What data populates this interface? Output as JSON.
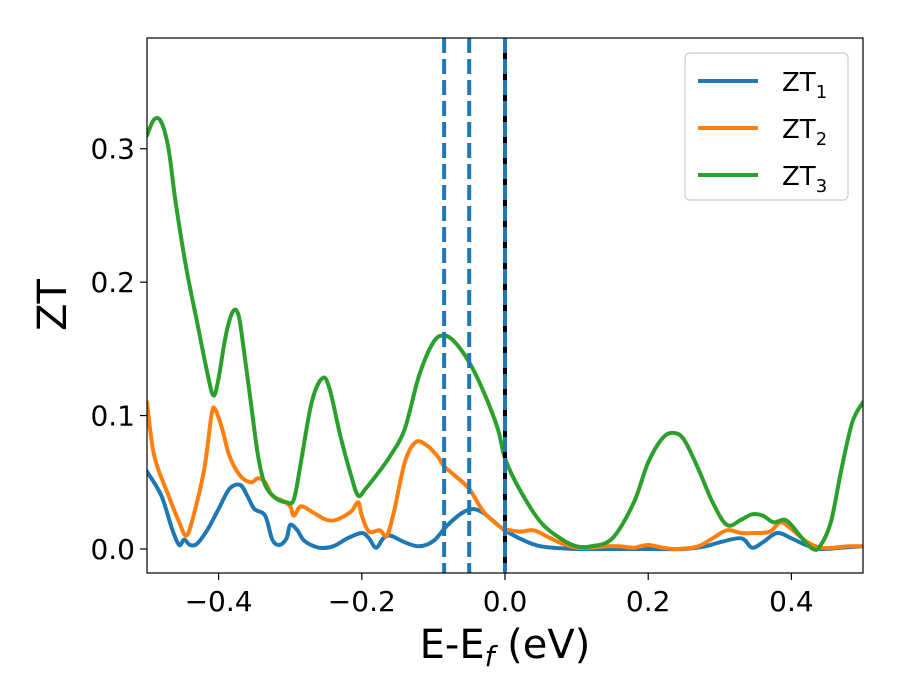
{
  "chart_data": {
    "type": "line",
    "xlabel": "E-E",
    "xlabel_sub": "f",
    "xlabel_unit": " (eV)",
    "ylabel": "ZT",
    "xlim": [
      -0.5,
      0.5
    ],
    "ylim": [
      -0.018,
      0.383
    ],
    "xticks": [
      -0.4,
      -0.2,
      0.0,
      0.2,
      0.4
    ],
    "xtick_labels": [
      "−0.4",
      "−0.2",
      "0.0",
      "0.2",
      "0.4"
    ],
    "yticks": [
      0.0,
      0.1,
      0.2,
      0.3
    ],
    "ytick_labels": [
      "0.0",
      "0.1",
      "0.2",
      "0.3"
    ],
    "grid": false,
    "legend_position": "top-right",
    "series": [
      {
        "name": "ZT",
        "sub": "1",
        "color": "#1f77b4",
        "points": [
          [
            -0.5,
            0.058
          ],
          [
            -0.48,
            0.04
          ],
          [
            -0.465,
            0.015
          ],
          [
            -0.455,
            0.003
          ],
          [
            -0.448,
            0.007
          ],
          [
            -0.44,
            0.003
          ],
          [
            -0.43,
            0.004
          ],
          [
            -0.415,
            0.015
          ],
          [
            -0.4,
            0.03
          ],
          [
            -0.385,
            0.045
          ],
          [
            -0.37,
            0.048
          ],
          [
            -0.36,
            0.04
          ],
          [
            -0.35,
            0.03
          ],
          [
            -0.335,
            0.025
          ],
          [
            -0.325,
            0.007
          ],
          [
            -0.315,
            0.003
          ],
          [
            -0.305,
            0.008
          ],
          [
            -0.3,
            0.018
          ],
          [
            -0.29,
            0.014
          ],
          [
            -0.28,
            0.006
          ],
          [
            -0.26,
            0.001
          ],
          [
            -0.24,
            0.002
          ],
          [
            -0.22,
            0.008
          ],
          [
            -0.2,
            0.012
          ],
          [
            -0.19,
            0.008
          ],
          [
            -0.18,
            0.001
          ],
          [
            -0.17,
            0.008
          ],
          [
            -0.16,
            0.01
          ],
          [
            -0.14,
            0.005
          ],
          [
            -0.12,
            0.002
          ],
          [
            -0.1,
            0.006
          ],
          [
            -0.08,
            0.018
          ],
          [
            -0.06,
            0.027
          ],
          [
            -0.045,
            0.03
          ],
          [
            -0.03,
            0.027
          ],
          [
            -0.01,
            0.018
          ],
          [
            0.0,
            0.014
          ],
          [
            0.02,
            0.008
          ],
          [
            0.05,
            0.002
          ],
          [
            0.1,
            0.0
          ],
          [
            0.15,
            0.0
          ],
          [
            0.2,
            0.0
          ],
          [
            0.25,
            0.0
          ],
          [
            0.28,
            0.002
          ],
          [
            0.3,
            0.005
          ],
          [
            0.33,
            0.008
          ],
          [
            0.345,
            0.001
          ],
          [
            0.36,
            0.005
          ],
          [
            0.38,
            0.012
          ],
          [
            0.4,
            0.008
          ],
          [
            0.42,
            0.003
          ],
          [
            0.44,
            0.0
          ],
          [
            0.47,
            0.001
          ],
          [
            0.5,
            0.002
          ]
        ]
      },
      {
        "name": "ZT",
        "sub": "2",
        "color": "#ff7f0e",
        "points": [
          [
            -0.5,
            0.11
          ],
          [
            -0.49,
            0.07
          ],
          [
            -0.47,
            0.04
          ],
          [
            -0.455,
            0.02
          ],
          [
            -0.445,
            0.01
          ],
          [
            -0.435,
            0.025
          ],
          [
            -0.42,
            0.06
          ],
          [
            -0.41,
            0.1
          ],
          [
            -0.405,
            0.105
          ],
          [
            -0.395,
            0.09
          ],
          [
            -0.385,
            0.07
          ],
          [
            -0.37,
            0.055
          ],
          [
            -0.355,
            0.05
          ],
          [
            -0.345,
            0.053
          ],
          [
            -0.335,
            0.05
          ],
          [
            -0.325,
            0.04
          ],
          [
            -0.31,
            0.036
          ],
          [
            -0.3,
            0.032
          ],
          [
            -0.295,
            0.025
          ],
          [
            -0.285,
            0.032
          ],
          [
            -0.27,
            0.028
          ],
          [
            -0.25,
            0.022
          ],
          [
            -0.235,
            0.022
          ],
          [
            -0.215,
            0.028
          ],
          [
            -0.205,
            0.035
          ],
          [
            -0.2,
            0.025
          ],
          [
            -0.19,
            0.013
          ],
          [
            -0.175,
            0.014
          ],
          [
            -0.165,
            0.01
          ],
          [
            -0.155,
            0.028
          ],
          [
            -0.14,
            0.065
          ],
          [
            -0.125,
            0.08
          ],
          [
            -0.11,
            0.078
          ],
          [
            -0.095,
            0.07
          ],
          [
            -0.085,
            0.062
          ],
          [
            -0.07,
            0.055
          ],
          [
            -0.05,
            0.045
          ],
          [
            -0.03,
            0.028
          ],
          [
            -0.01,
            0.018
          ],
          [
            0.0,
            0.015
          ],
          [
            0.02,
            0.013
          ],
          [
            0.04,
            0.014
          ],
          [
            0.06,
            0.009
          ],
          [
            0.08,
            0.004
          ],
          [
            0.1,
            0.001
          ],
          [
            0.12,
            0.001
          ],
          [
            0.14,
            0.002
          ],
          [
            0.16,
            0.002
          ],
          [
            0.18,
            0.001
          ],
          [
            0.2,
            0.003
          ],
          [
            0.22,
            0.001
          ],
          [
            0.24,
            0.0
          ],
          [
            0.27,
            0.002
          ],
          [
            0.29,
            0.008
          ],
          [
            0.31,
            0.014
          ],
          [
            0.33,
            0.012
          ],
          [
            0.35,
            0.012
          ],
          [
            0.37,
            0.013
          ],
          [
            0.385,
            0.02
          ],
          [
            0.4,
            0.015
          ],
          [
            0.42,
            0.006
          ],
          [
            0.44,
            0.001
          ],
          [
            0.46,
            0.001
          ],
          [
            0.48,
            0.002
          ],
          [
            0.5,
            0.002
          ]
        ]
      },
      {
        "name": "ZT",
        "sub": "3",
        "color": "#2ca02c",
        "points": [
          [
            -0.5,
            0.31
          ],
          [
            -0.49,
            0.322
          ],
          [
            -0.48,
            0.32
          ],
          [
            -0.47,
            0.3
          ],
          [
            -0.46,
            0.26
          ],
          [
            -0.445,
            0.21
          ],
          [
            -0.43,
            0.17
          ],
          [
            -0.415,
            0.13
          ],
          [
            -0.407,
            0.115
          ],
          [
            -0.4,
            0.128
          ],
          [
            -0.39,
            0.16
          ],
          [
            -0.38,
            0.178
          ],
          [
            -0.372,
            0.175
          ],
          [
            -0.365,
            0.15
          ],
          [
            -0.355,
            0.11
          ],
          [
            -0.345,
            0.07
          ],
          [
            -0.335,
            0.048
          ],
          [
            -0.32,
            0.038
          ],
          [
            -0.305,
            0.035
          ],
          [
            -0.295,
            0.037
          ],
          [
            -0.285,
            0.065
          ],
          [
            -0.27,
            0.11
          ],
          [
            -0.255,
            0.128
          ],
          [
            -0.245,
            0.12
          ],
          [
            -0.23,
            0.085
          ],
          [
            -0.215,
            0.055
          ],
          [
            -0.205,
            0.04
          ],
          [
            -0.195,
            0.045
          ],
          [
            -0.18,
            0.055
          ],
          [
            -0.16,
            0.07
          ],
          [
            -0.14,
            0.09
          ],
          [
            -0.12,
            0.13
          ],
          [
            -0.1,
            0.155
          ],
          [
            -0.085,
            0.16
          ],
          [
            -0.07,
            0.155
          ],
          [
            -0.05,
            0.14
          ],
          [
            -0.03,
            0.118
          ],
          [
            -0.01,
            0.09
          ],
          [
            0.0,
            0.068
          ],
          [
            0.02,
            0.045
          ],
          [
            0.05,
            0.02
          ],
          [
            0.08,
            0.007
          ],
          [
            0.1,
            0.002
          ],
          [
            0.12,
            0.002
          ],
          [
            0.15,
            0.008
          ],
          [
            0.18,
            0.035
          ],
          [
            0.2,
            0.065
          ],
          [
            0.22,
            0.083
          ],
          [
            0.235,
            0.087
          ],
          [
            0.25,
            0.082
          ],
          [
            0.27,
            0.06
          ],
          [
            0.29,
            0.035
          ],
          [
            0.31,
            0.018
          ],
          [
            0.33,
            0.022
          ],
          [
            0.345,
            0.026
          ],
          [
            0.36,
            0.025
          ],
          [
            0.375,
            0.02
          ],
          [
            0.39,
            0.022
          ],
          [
            0.4,
            0.018
          ],
          [
            0.415,
            0.008
          ],
          [
            0.43,
            0.0
          ],
          [
            0.44,
            0.002
          ],
          [
            0.455,
            0.02
          ],
          [
            0.47,
            0.06
          ],
          [
            0.485,
            0.095
          ],
          [
            0.5,
            0.11
          ]
        ]
      }
    ],
    "vlines": [
      {
        "x": -0.085,
        "style": "dashed",
        "color": "#1f77b4"
      },
      {
        "x": -0.05,
        "style": "dashed",
        "color": "#1f77b4"
      },
      {
        "x": 0.0,
        "style": "solid",
        "color": "#000000"
      },
      {
        "x": 0.0,
        "style": "dashed",
        "color": "#1f77b4"
      }
    ]
  }
}
